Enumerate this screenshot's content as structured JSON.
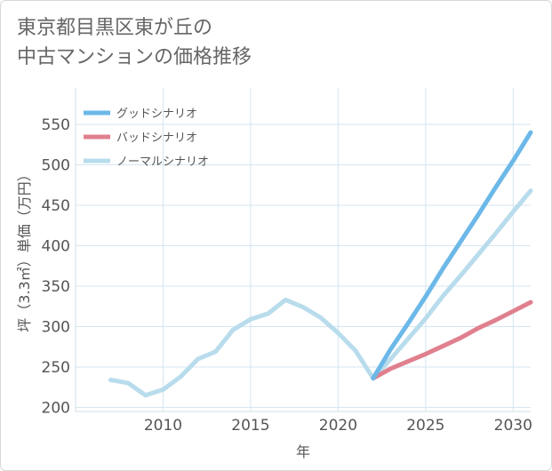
{
  "title_line1": "東京都目黒区東が丘の",
  "title_line2": "中古マンションの価格推移",
  "chart_data": {
    "type": "line",
    "title": "東京都目黒区東が丘の中古マンションの価格推移",
    "xlabel": "年",
    "ylabel": "坪（3.3㎡）単価（万円）",
    "xlim": [
      2005,
      2031
    ],
    "ylim": [
      195,
      595
    ],
    "xticks": [
      2010,
      2015,
      2020,
      2025,
      2030
    ],
    "yticks": [
      200,
      250,
      300,
      350,
      400,
      450,
      500,
      550
    ],
    "legend": [
      "グッドシナリオ",
      "バッドシナリオ",
      "ノーマルシナリオ"
    ],
    "series": [
      {
        "name": "ノーマルシナリオ",
        "color": "#b8dcec",
        "x": [
          2007,
          2008,
          2009,
          2010,
          2011,
          2012,
          2013,
          2014,
          2015,
          2016,
          2017,
          2018,
          2019,
          2020,
          2021,
          2022,
          2023,
          2024,
          2025,
          2026,
          2027,
          2028,
          2029,
          2030,
          2031
        ],
        "y": [
          234,
          230,
          215,
          222,
          238,
          260,
          269,
          296,
          309,
          316,
          333,
          324,
          311,
          292,
          270,
          236,
          260,
          285,
          310,
          338,
          363,
          389,
          415,
          442,
          468
        ]
      },
      {
        "name": "バッドシナリオ",
        "color": "#e0808e",
        "x": [
          2022,
          2023,
          2024,
          2025,
          2026,
          2027,
          2028,
          2029,
          2030,
          2031
        ],
        "y": [
          236,
          248,
          257,
          266,
          276,
          286,
          298,
          308,
          319,
          330
        ]
      },
      {
        "name": "グッドシナリオ",
        "color": "#6cb8e8",
        "x": [
          2022,
          2023,
          2024,
          2025,
          2026,
          2027,
          2028,
          2029,
          2030,
          2031
        ],
        "y": [
          236,
          272,
          304,
          337,
          372,
          405,
          438,
          472,
          505,
          540
        ]
      }
    ]
  }
}
